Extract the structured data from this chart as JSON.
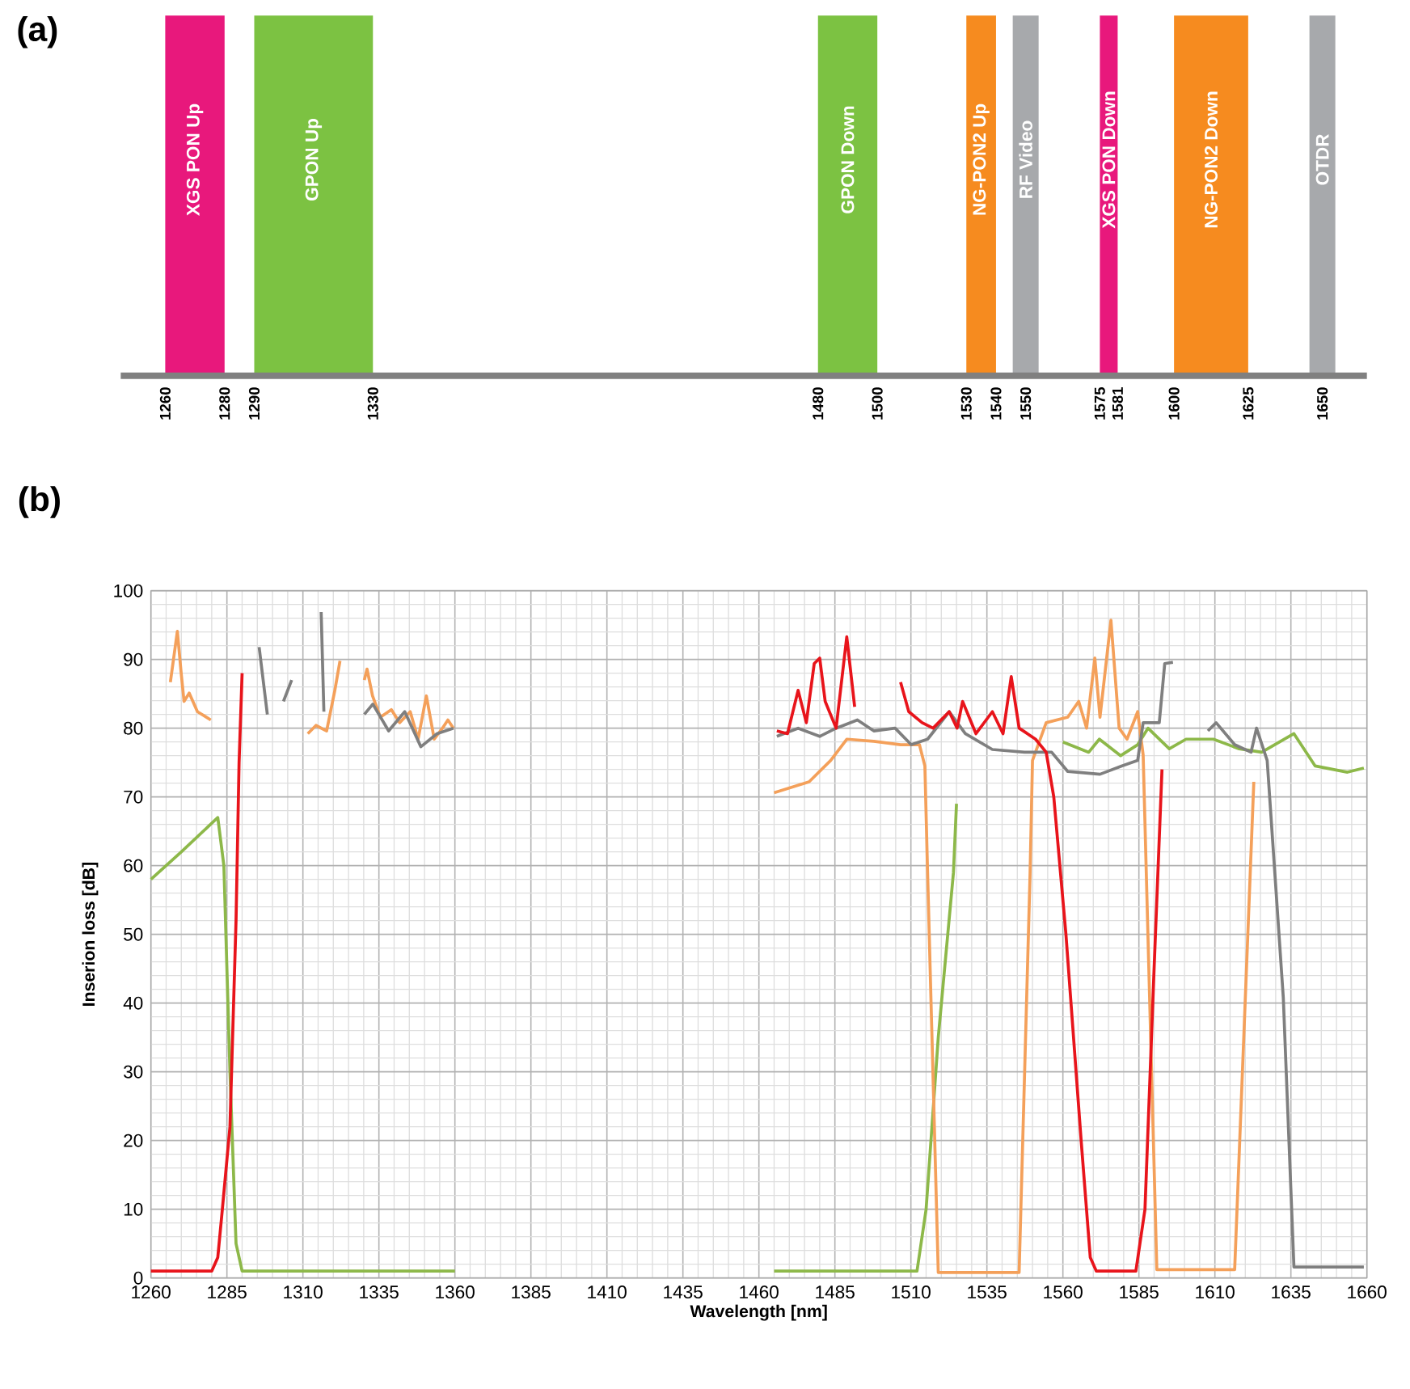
{
  "chart_data": [
    {
      "type": "bar",
      "orientation": "horizontal",
      "title": "(a)",
      "categories": [
        null
      ],
      "xlim": [
        1245,
        1665
      ],
      "xticks": [
        1260,
        1280,
        1290,
        1330,
        1480,
        1500,
        1530,
        1540,
        1550,
        1575,
        1581,
        1600,
        1625,
        1650
      ],
      "tick_labels": "x",
      "series": [
        {
          "name": "XGS PON Up",
          "color": "#e8187c",
          "base": [
            1260
          ],
          "values": [
            20
          ]
        },
        {
          "name": "GPON Up",
          "color": "#7cc242",
          "base": [
            1290
          ],
          "values": [
            40
          ]
        },
        {
          "name": "GPON Down",
          "color": "#7cc242",
          "base": [
            1480
          ],
          "values": [
            20
          ]
        },
        {
          "name": "NG-PON2 Up",
          "color": "#f68b1f",
          "base": [
            1530
          ],
          "values": [
            10
          ]
        },
        {
          "name": "XGS PON Down",
          "color": "#e8187c",
          "base": [
            1575
          ],
          "values": [
            6
          ]
        },
        {
          "name": "NG-PON2 Down",
          "color": "#f68b1f",
          "base": [
            1600
          ],
          "values": [
            25
          ]
        }
      ],
      "ref_lines": [
        {
          "axis": "x",
          "value": 1550,
          "label": "RF Video",
          "color": "#a7a9ac"
        },
        {
          "axis": "x",
          "value": 1650,
          "label": "OTDR",
          "color": "#a7a9ac"
        }
      ]
    },
    {
      "type": "line",
      "title": "(b)",
      "xlabel": "Wavelength [nm]",
      "ylabel": "Inserion loss [dB]",
      "xlim": [
        1260,
        1660
      ],
      "ylim": [
        0,
        100
      ],
      "xticks": [
        1260,
        1285,
        1310,
        1335,
        1360,
        1385,
        1410,
        1435,
        1460,
        1485,
        1510,
        1535,
        1560,
        1585,
        1610,
        1635,
        1660
      ],
      "yticks": [
        0,
        10,
        20,
        30,
        40,
        50,
        60,
        70,
        80,
        90,
        100
      ],
      "grid": true,
      "series": [
        {
          "color": "#8db849",
          "x": [
            1260,
            1270,
            1282,
            1284,
            1286,
            1288,
            1290,
            1360,
            1410,
            1465,
            1512,
            1515,
            1519,
            1524,
            1525,
            1540,
            1560,
            1568.5,
            1572,
            1579,
            1584.6,
            1588,
            1595,
            1600.5,
            1609.5,
            1618,
            1625.4,
            1636,
            1643,
            1653.6,
            1659
          ],
          "values": [
            58,
            62,
            67,
            60,
            30,
            5,
            1,
            1,
            null,
            1,
            1,
            10,
            35,
            59,
            69,
            null,
            78,
            76.5,
            78.4,
            76,
            77.6,
            80,
            77,
            78.4,
            78.4,
            77,
            76.5,
            79.2,
            74.5,
            73.6,
            74.2
          ]
        },
        {
          "color": "#f4a05a",
          "x": [
            1266.4,
            1268.7,
            1270,
            1270.9,
            1272.6,
            1275.3,
            1279.7,
            1295,
            1311.6,
            1314.3,
            1317.8,
            1320.5,
            1322.2,
            1326,
            1330.2,
            1331.1,
            1332.9,
            1335.5,
            1339.1,
            1341.8,
            1345.3,
            1347.9,
            1350.6,
            1353.2,
            1355.9,
            1357.7,
            1359.5,
            1410,
            1465,
            1476.5,
            1483.6,
            1488.9,
            1497.8,
            1506.6,
            1512.8,
            1514.6,
            1515.5,
            1519,
            1545.6,
            1549.2,
            1550,
            1554.5,
            1561.6,
            1565.2,
            1567.8,
            1570.5,
            1572.2,
            1575.8,
            1578.5,
            1581.1,
            1584.6,
            1586.4,
            1590.9,
            1616.5,
            1622.8
          ],
          "values": [
            86.7,
            94.1,
            87.8,
            83.9,
            85.1,
            82.4,
            81.2,
            null,
            79.2,
            80.4,
            79.6,
            85.5,
            89.8,
            null,
            87,
            88.6,
            84.7,
            81.6,
            82.7,
            80.8,
            82.4,
            78.4,
            84.7,
            78.4,
            80,
            81.2,
            80,
            null,
            70.6,
            72.2,
            75.3,
            78.4,
            78.1,
            77.6,
            77.6,
            74.5,
            58.8,
            0.8,
            0.8,
            58.8,
            75.3,
            80.8,
            81.6,
            83.9,
            80,
            90.2,
            81.6,
            95.7,
            80,
            78.4,
            82.4,
            76.1,
            1.2,
            1.2,
            72.2
          ]
        },
        {
          "color": "#7f7f7f",
          "x": [
            1295.6,
            1298.3,
            1301,
            1303.6,
            1306.3,
            1311,
            1316,
            1316.9,
            1323,
            1330.2,
            1333,
            1338.2,
            1343.5,
            1348.8,
            1354.1,
            1359.5,
            1410,
            1465.9,
            1472.9,
            1480,
            1485.4,
            1492.4,
            1497.8,
            1504.8,
            1510.1,
            1515.5,
            1522.6,
            1527.9,
            1536.8,
            1547.4,
            1556.3,
            1561.6,
            1572.2,
            1579.3,
            1584.6,
            1586.4,
            1591.7,
            1593.5,
            1596.2,
            1602,
            1607.7,
            1610.4,
            1616.5,
            1621.9,
            1623.7,
            1627.2,
            1632.5,
            1636,
            1659
          ],
          "values": [
            91.8,
            82,
            null,
            83.9,
            87,
            null,
            96.9,
            82.4,
            null,
            82,
            83.5,
            79.6,
            82.4,
            77.3,
            79.2,
            80,
            null,
            78.8,
            80,
            78.8,
            80,
            81.2,
            79.6,
            80,
            77.6,
            78.4,
            82.4,
            79.2,
            76.9,
            76.5,
            76.5,
            73.7,
            73.3,
            74.5,
            75.3,
            80.8,
            80.8,
            89.4,
            89.6,
            null,
            79.6,
            80.8,
            77.6,
            76.5,
            80,
            75.3,
            40.8,
            1.6,
            1.6
          ]
        },
        {
          "color": "#e8141b",
          "x": [
            1260,
            1280,
            1282,
            1283.5,
            1286,
            1288,
            1289,
            1290,
            1380,
            1465.9,
            1469.4,
            1472.9,
            1475.6,
            1478.2,
            1480,
            1481.8,
            1485.4,
            1488.9,
            1491.5,
            1500,
            1506.6,
            1509.3,
            1513.7,
            1517.3,
            1522.6,
            1525.2,
            1527,
            1531.4,
            1536.8,
            1540.3,
            1543,
            1545.6,
            1551,
            1554.5,
            1557,
            1561,
            1566,
            1569,
            1571,
            1584,
            1587,
            1590,
            1592.6
          ],
          "values": [
            1,
            1,
            3,
            10,
            22,
            52,
            75,
            88,
            null,
            79.6,
            79.2,
            85.5,
            80.8,
            89.4,
            90.2,
            83.9,
            80,
            93.3,
            83.1,
            null,
            86.7,
            82.4,
            80.8,
            80,
            82.4,
            80,
            83.9,
            79.2,
            82.4,
            79.2,
            87.5,
            80,
            78.4,
            76.5,
            70,
            50,
            20,
            3,
            1,
            1,
            10,
            45,
            74
          ]
        }
      ]
    }
  ]
}
